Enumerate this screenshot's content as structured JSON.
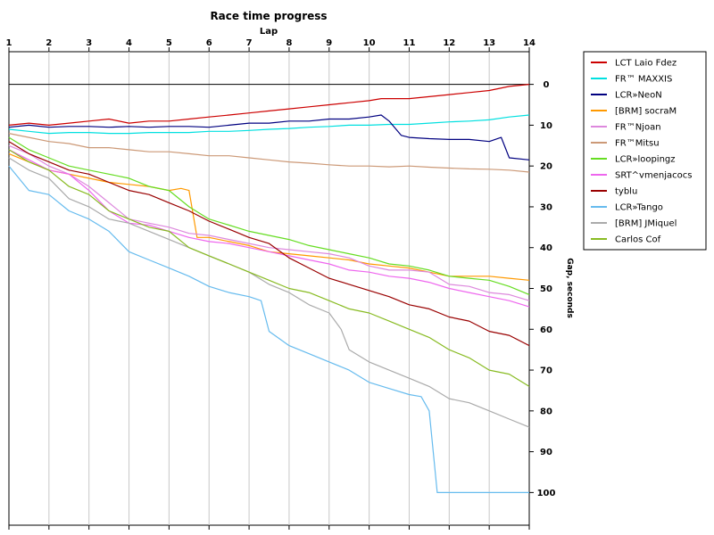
{
  "chart_data": {
    "type": "line",
    "title": "Race time progress",
    "xlabel": "Lap",
    "ylabel": "Gap, seconds",
    "xlim": [
      1,
      14
    ],
    "ylim": [
      -8,
      108
    ],
    "y_inverted": true,
    "x_ticks": [
      1,
      2,
      3,
      4,
      5,
      6,
      7,
      8,
      9,
      10,
      11,
      12,
      13,
      14
    ],
    "y_ticks": [
      0,
      10,
      20,
      30,
      40,
      50,
      60,
      70,
      80,
      90,
      100
    ],
    "grid": true,
    "legend_position": "right",
    "series": [
      {
        "name": "LCT Laio Fdez",
        "color": "#cc0000",
        "x": [
          1,
          1.5,
          2,
          2.5,
          3,
          3.5,
          4,
          4.5,
          5,
          5.5,
          6,
          6.5,
          7,
          7.5,
          8,
          8.5,
          9,
          9.5,
          10,
          10.3,
          10.6,
          11,
          11.5,
          12,
          12.5,
          13,
          13.5,
          14
        ],
        "y": [
          10,
          9.5,
          10,
          9.5,
          9,
          8.5,
          9.5,
          9,
          9,
          8.5,
          8,
          7.5,
          7,
          6.5,
          6,
          5.5,
          5,
          4.5,
          4,
          3.5,
          3.5,
          3.5,
          3,
          2.5,
          2,
          1.5,
          0.5,
          0
        ]
      },
      {
        "name": "FR™ MAXXIS",
        "color": "#00e0e0",
        "x": [
          1,
          1.5,
          2,
          2.5,
          3,
          3.5,
          4,
          4.5,
          5,
          5.5,
          6,
          6.5,
          7,
          7.5,
          8,
          8.5,
          9,
          9.5,
          10,
          10.5,
          11,
          11.5,
          12,
          12.5,
          13,
          13.5,
          14
        ],
        "y": [
          11,
          11.5,
          12,
          11.8,
          11.8,
          12,
          12,
          11.8,
          11.8,
          11.8,
          11.5,
          11.5,
          11.3,
          11,
          10.8,
          10.5,
          10.3,
          10,
          10,
          9.8,
          9.8,
          9.5,
          9.2,
          9,
          8.7,
          8,
          7.5
        ]
      },
      {
        "name": "LCR»NeoN",
        "color": "#000080",
        "x": [
          1,
          1.5,
          2,
          2.5,
          3,
          3.5,
          4,
          4.5,
          5,
          5.5,
          6,
          6.5,
          7,
          7.5,
          8,
          8.5,
          9,
          9.5,
          10,
          10.3,
          10.5,
          10.8,
          11,
          11.5,
          12,
          12.5,
          13,
          13.3,
          13.5,
          14
        ],
        "y": [
          10.5,
          10,
          10.5,
          10.3,
          10.3,
          10.5,
          10.3,
          10.5,
          10.3,
          10.3,
          10.5,
          10,
          9.5,
          9.5,
          9,
          9,
          8.5,
          8.5,
          8,
          7.5,
          9,
          12.5,
          13,
          13.3,
          13.5,
          13.5,
          14,
          13,
          18,
          18.5
        ]
      },
      {
        "name": "[BRM] socraM",
        "color": "#ff9900",
        "x": [
          1,
          1.5,
          2,
          2.5,
          3,
          3.5,
          4,
          4.5,
          5,
          5.3,
          5.5,
          5.7,
          6,
          6.5,
          7,
          7.5,
          8,
          8.5,
          9,
          9.5,
          10,
          10.5,
          11,
          11.5,
          12,
          12.5,
          13,
          13.5,
          14
        ],
        "y": [
          17,
          19,
          21,
          22,
          23,
          24,
          24.5,
          25,
          26,
          25.5,
          26,
          37.5,
          37.5,
          38.5,
          39.5,
          41,
          41.5,
          42,
          42.5,
          43,
          44,
          44.5,
          45,
          46,
          47,
          47,
          47,
          47.5,
          48
        ]
      },
      {
        "name": "FR™Njoan",
        "color": "#dd88dd",
        "x": [
          1,
          1.5,
          2,
          2.5,
          3,
          3.5,
          4,
          4.5,
          5,
          5.5,
          6,
          6.5,
          7,
          7.5,
          8,
          8.5,
          9,
          9.5,
          10,
          10.5,
          11,
          11.5,
          12,
          12.5,
          13,
          13.5,
          14
        ],
        "y": [
          15,
          17,
          20,
          22,
          25,
          29,
          33,
          34,
          35,
          36.5,
          37,
          38,
          39,
          40,
          40.5,
          41,
          41.5,
          42.5,
          44.5,
          45.5,
          45.5,
          46,
          49,
          49.5,
          51,
          51.5,
          53
        ]
      },
      {
        "name": "FR™Mitsu",
        "color": "#cc9977",
        "x": [
          1,
          1.5,
          2,
          2.5,
          3,
          3.5,
          4,
          4.5,
          5,
          5.5,
          6,
          6.5,
          7,
          7.5,
          8,
          8.5,
          9,
          9.5,
          10,
          10.5,
          11,
          11.5,
          12,
          12.5,
          13,
          13.5,
          14
        ],
        "y": [
          12,
          13,
          14,
          14.5,
          15.5,
          15.5,
          16,
          16.5,
          16.5,
          17,
          17.5,
          17.5,
          18,
          18.5,
          19,
          19.3,
          19.7,
          20,
          20,
          20.2,
          20,
          20.3,
          20.5,
          20.7,
          20.8,
          21,
          21.5
        ]
      },
      {
        "name": "LCR»loopingz",
        "color": "#66dd22",
        "x": [
          1,
          1.5,
          2,
          2.5,
          3,
          3.5,
          4,
          4.5,
          5,
          5.5,
          6,
          6.5,
          7,
          7.5,
          8,
          8.5,
          9,
          9.5,
          10,
          10.5,
          11,
          11.5,
          12,
          12.5,
          13,
          13.5,
          14
        ],
        "y": [
          13,
          16,
          18,
          20,
          21,
          22,
          23,
          25,
          26,
          30,
          33,
          34.5,
          36,
          37,
          38,
          39.5,
          40.5,
          41.5,
          42.5,
          44,
          44.5,
          45.5,
          47,
          47.5,
          48,
          49.5,
          51.5
        ]
      },
      {
        "name": "SRT^vmenjacocs",
        "color": "#ee66ee",
        "x": [
          1,
          1.5,
          2,
          2.5,
          3,
          3.5,
          4,
          4.5,
          5,
          5.5,
          6,
          6.5,
          7,
          7.5,
          8,
          8.5,
          9,
          9.5,
          10,
          10.5,
          11,
          11.5,
          12,
          12.5,
          13,
          13.5,
          14
        ],
        "y": [
          16,
          18.5,
          21,
          22,
          26,
          31,
          34,
          34.5,
          36,
          37.5,
          38.5,
          39,
          40,
          41,
          42,
          43,
          44,
          45.5,
          46,
          47,
          47.5,
          48.5,
          50,
          51,
          52,
          53,
          54.5
        ]
      },
      {
        "name": "tyblu",
        "color": "#990000",
        "x": [
          1,
          1.5,
          2,
          2.5,
          3,
          3.5,
          4,
          4.5,
          5,
          5.5,
          6,
          6.5,
          7,
          7.5,
          8,
          8.5,
          9,
          9.5,
          10,
          10.5,
          11,
          11.5,
          12,
          12.5,
          13,
          13.5,
          14
        ],
        "y": [
          14,
          17,
          19,
          21,
          22,
          24,
          26,
          27,
          29,
          31,
          33.5,
          35.5,
          37.5,
          39,
          42.5,
          45,
          47.5,
          49,
          50.5,
          52,
          54,
          55,
          57,
          58,
          60.5,
          61.5,
          64
        ]
      },
      {
        "name": "LCR»Tango",
        "color": "#66bbee",
        "x": [
          1,
          1.5,
          2,
          2.5,
          3,
          3.5,
          4,
          4.5,
          5,
          5.5,
          6,
          6.5,
          7,
          7.3,
          7.5,
          8,
          8.5,
          9,
          9.5,
          10,
          10.5,
          11,
          11.3,
          11.5,
          11.7,
          12,
          12.5,
          13,
          13.5,
          14
        ],
        "y": [
          20,
          26,
          27,
          31,
          33,
          36,
          41,
          43,
          45,
          47,
          49.5,
          51,
          52,
          53,
          60.5,
          64,
          66,
          68,
          70,
          73,
          74.5,
          76,
          76.5,
          80,
          100,
          100,
          100,
          100,
          100,
          100
        ]
      },
      {
        "name": "[BRM] JMiquel",
        "color": "#aaaaaa",
        "x": [
          1,
          1.5,
          2,
          2.5,
          3,
          3.5,
          4,
          4.5,
          5,
          5.5,
          6,
          6.5,
          7,
          7.5,
          8,
          8.5,
          9,
          9.3,
          9.5,
          10,
          10.5,
          11,
          11.5,
          12,
          12.5,
          13,
          13.5,
          14
        ],
        "y": [
          18,
          21,
          23,
          28,
          30,
          33,
          34,
          36,
          38,
          40,
          42,
          44,
          46,
          49,
          51,
          54,
          56,
          60,
          65,
          68,
          70,
          72,
          74,
          77,
          78,
          80,
          82,
          84
        ]
      },
      {
        "name": "Carlos Cof",
        "color": "#88bb22",
        "x": [
          1,
          1.5,
          2,
          2.5,
          3,
          3.5,
          4,
          4.5,
          5,
          5.5,
          6,
          6.5,
          7,
          7.5,
          8,
          8.5,
          9,
          9.5,
          10,
          10.5,
          11,
          11.5,
          12,
          12.5,
          13,
          13.5,
          14
        ],
        "y": [
          16,
          19,
          21,
          25,
          27,
          31,
          33,
          35,
          36,
          40,
          42,
          44,
          46,
          48,
          50,
          51,
          53,
          55,
          56,
          58,
          60,
          62,
          65,
          67,
          70,
          71,
          74
        ]
      }
    ]
  }
}
